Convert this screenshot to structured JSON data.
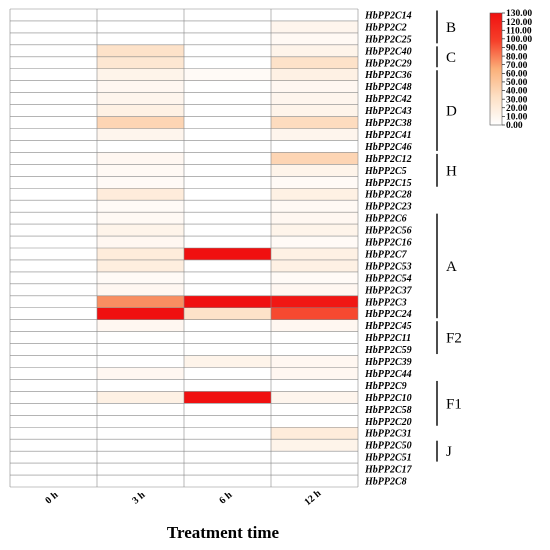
{
  "chart_data": {
    "type": "heatmap",
    "xlabel": "Treatment time",
    "columns": [
      "0 h",
      "3 h",
      "6 h",
      "12 h"
    ],
    "rows": [
      "HbPP2C14",
      "HbPP2C2",
      "HbPP2C25",
      "HbPP2C40",
      "HbPP2C29",
      "HbPP2C36",
      "HbPP2C48",
      "HbPP2C42",
      "HbPP2C43",
      "HbPP2C38",
      "HbPP2C41",
      "HbPP2C46",
      "HbPP2C12",
      "HbPP2C5",
      "HbPP2C15",
      "HbPP2C28",
      "HbPP2C23",
      "HbPP2C6",
      "HbPP2C56",
      "HbPP2C16",
      "HbPP2C7",
      "HbPP2C53",
      "HbPP2C54",
      "HbPP2C37",
      "HbPP2C3",
      "HbPP2C24",
      "HbPP2C45",
      "HbPP2C11",
      "HbPP2C59",
      "HbPP2C39",
      "HbPP2C44",
      "HbPP2C9",
      "HbPP2C10",
      "HbPP2C58",
      "HbPP2C20",
      "HbPP2C31",
      "HbPP2C50",
      "HbPP2C51",
      "HbPP2C17",
      "HbPP2C8"
    ],
    "values": [
      [
        0,
        0,
        0,
        0
      ],
      [
        0,
        0,
        0,
        10
      ],
      [
        0,
        0,
        0,
        6
      ],
      [
        0,
        30,
        0,
        12
      ],
      [
        0,
        25,
        0,
        30
      ],
      [
        0,
        12,
        5,
        15
      ],
      [
        0,
        8,
        0,
        8
      ],
      [
        0,
        10,
        0,
        10
      ],
      [
        0,
        15,
        0,
        12
      ],
      [
        0,
        40,
        0,
        35
      ],
      [
        0,
        10,
        0,
        10
      ],
      [
        0,
        0,
        0,
        0
      ],
      [
        0,
        8,
        0,
        40
      ],
      [
        0,
        6,
        0,
        12
      ],
      [
        0,
        5,
        0,
        5
      ],
      [
        0,
        20,
        0,
        15
      ],
      [
        0,
        5,
        0,
        6
      ],
      [
        0,
        6,
        0,
        8
      ],
      [
        0,
        12,
        0,
        12
      ],
      [
        0,
        8,
        0,
        5
      ],
      [
        0,
        20,
        130,
        15
      ],
      [
        0,
        18,
        0,
        15
      ],
      [
        0,
        5,
        0,
        5
      ],
      [
        0,
        8,
        0,
        8
      ],
      [
        0,
        75,
        130,
        125
      ],
      [
        0,
        130,
        30,
        95
      ],
      [
        0,
        8,
        0,
        8
      ],
      [
        0,
        0,
        0,
        0
      ],
      [
        0,
        0,
        0,
        0
      ],
      [
        0,
        0,
        12,
        8
      ],
      [
        0,
        8,
        0,
        8
      ],
      [
        0,
        0,
        0,
        0
      ],
      [
        0,
        15,
        130,
        10
      ],
      [
        0,
        0,
        0,
        0
      ],
      [
        0,
        0,
        0,
        0
      ],
      [
        0,
        0,
        0,
        20
      ],
      [
        0,
        0,
        0,
        12
      ],
      [
        0,
        0,
        0,
        0
      ],
      [
        0,
        0,
        0,
        0
      ],
      [
        0,
        0,
        0,
        0
      ]
    ],
    "groups": [
      {
        "label": "B",
        "start": 0,
        "end": 2
      },
      {
        "label": "C",
        "start": 3,
        "end": 4
      },
      {
        "label": "D",
        "start": 5,
        "end": 11
      },
      {
        "label": "H",
        "start": 12,
        "end": 14
      },
      {
        "label": "A",
        "start": 17,
        "end": 25
      },
      {
        "label": "F2",
        "start": 26,
        "end": 28
      },
      {
        "label": "F1",
        "start": 31,
        "end": 34
      },
      {
        "label": "J",
        "start": 36,
        "end": 37
      }
    ],
    "colorbar": {
      "min": 0,
      "max": 130,
      "ticks": [
        "130.00",
        "120.00",
        "110.00",
        "100.00",
        "90.00",
        "80.00",
        "70.00",
        "60.00",
        "50.00",
        "40.00",
        "30.00",
        "20.00",
        "10.00",
        "0.00"
      ],
      "colors": [
        "#ffffff",
        "#fde0c5",
        "#fbb07a",
        "#f6402a",
        "#f01010"
      ]
    }
  }
}
